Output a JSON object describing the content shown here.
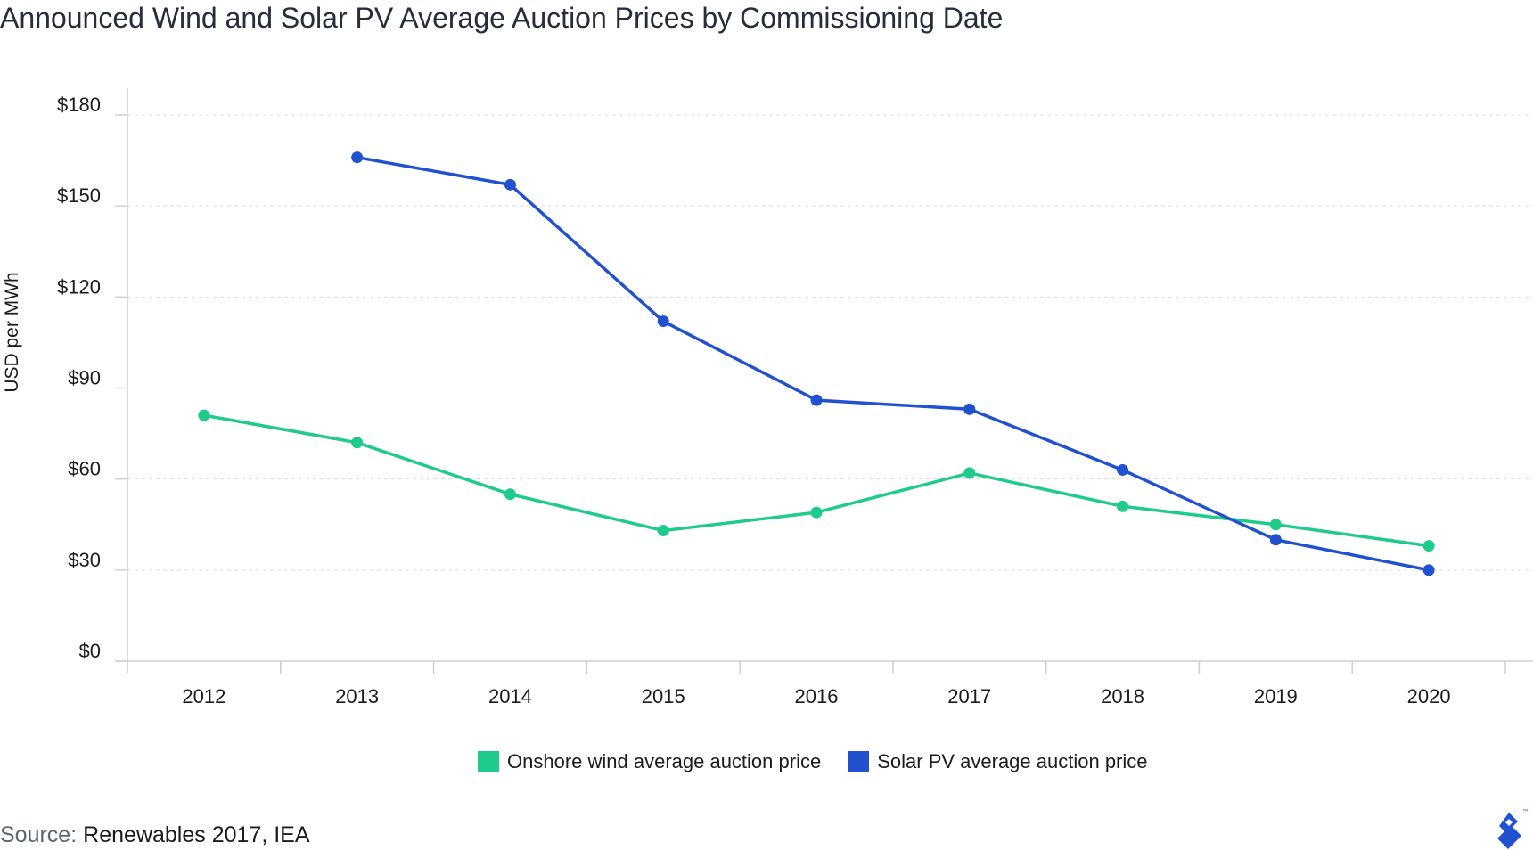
{
  "chart_data": {
    "type": "line",
    "title": "Announced Wind and Solar PV Average Auction Prices by Commissioning Date",
    "xlabel": "",
    "ylabel": "USD per MWh",
    "categories": [
      "2012",
      "2013",
      "2014",
      "2015",
      "2016",
      "2017",
      "2018",
      "2019",
      "2020"
    ],
    "ylim": [
      0,
      180
    ],
    "yticks": [
      0,
      30,
      60,
      90,
      120,
      150,
      180
    ],
    "ytick_labels": [
      "$0",
      "$30",
      "$60",
      "$90",
      "$120",
      "$150",
      "$180"
    ],
    "grid": true,
    "legend": "bottom-center",
    "series": [
      {
        "name": "Onshore wind average auction price",
        "color": "#1FCB8B",
        "values": [
          81,
          72,
          55,
          43,
          49,
          62,
          51,
          45,
          38
        ]
      },
      {
        "name": "Solar PV average auction price",
        "color": "#2251D0",
        "values": [
          null,
          166,
          157,
          112,
          86,
          83,
          63,
          40,
          30
        ]
      }
    ]
  },
  "source": {
    "label": "Source:",
    "text": "Renewables 2017, IEA"
  },
  "logo": {
    "icon": "toptal-logo-icon",
    "trademark": "™",
    "color": "#2251D0"
  }
}
